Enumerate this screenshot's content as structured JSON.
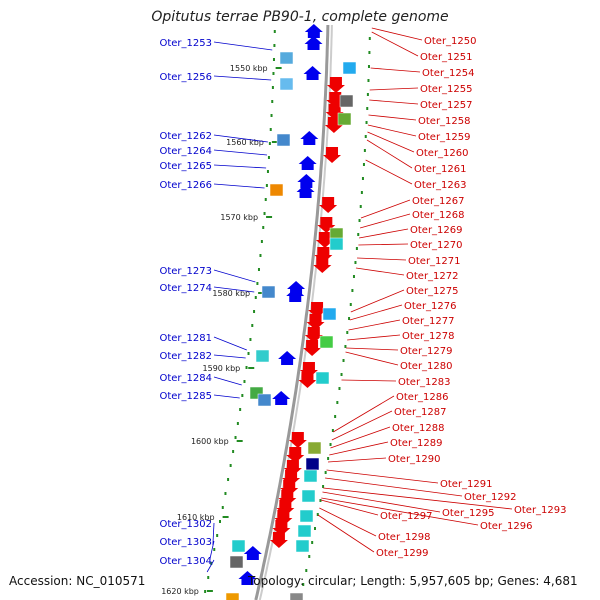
{
  "title": "Opitutus terrae PB90-1, complete genome",
  "accession": "Accession: NC_010571",
  "summary": "Topology: circular; Length: 5,957,605 bp; Genes: 4,681",
  "colors": {
    "backbone": "#888888",
    "forward": "#0000ee",
    "reverse": "#ee0000",
    "tick": "#228b22",
    "left_label": "#0000cc",
    "right_label": "#cc0000"
  },
  "scale_ticks": [
    "1550 kbp",
    "1560 kbp",
    "1570 kbp",
    "1580 kbp",
    "1590 kbp",
    "1600 kbp",
    "1610 kbp",
    "1620 kbp"
  ],
  "left_genes": [
    "Oter_1253",
    "Oter_1256",
    "Oter_1262",
    "Oter_1264",
    "Oter_1265",
    "Oter_1266",
    "Oter_1273",
    "Oter_1274",
    "Oter_1281",
    "Oter_1282",
    "Oter_1284",
    "Oter_1285",
    "Oter_1302",
    "Oter_1303",
    "Oter_1304"
  ],
  "right_genes": [
    "Oter_1250",
    "Oter_1251",
    "Oter_1254",
    "Oter_1255",
    "Oter_1257",
    "Oter_1258",
    "Oter_1259",
    "Oter_1260",
    "Oter_1261",
    "Oter_1263",
    "Oter_1267",
    "Oter_1268",
    "Oter_1269",
    "Oter_1270",
    "Oter_1271",
    "Oter_1272",
    "Oter_1275",
    "Oter_1276",
    "Oter_1277",
    "Oter_1278",
    "Oter_1279",
    "Oter_1280",
    "Oter_1283",
    "Oter_1286",
    "Oter_1287",
    "Oter_1288",
    "Oter_1289",
    "Oter_1290",
    "Oter_1291",
    "Oter_1292",
    "Oter_1293",
    "Oter_1295",
    "Oter_1296",
    "Oter_1297",
    "Oter_1298",
    "Oter_1299"
  ]
}
